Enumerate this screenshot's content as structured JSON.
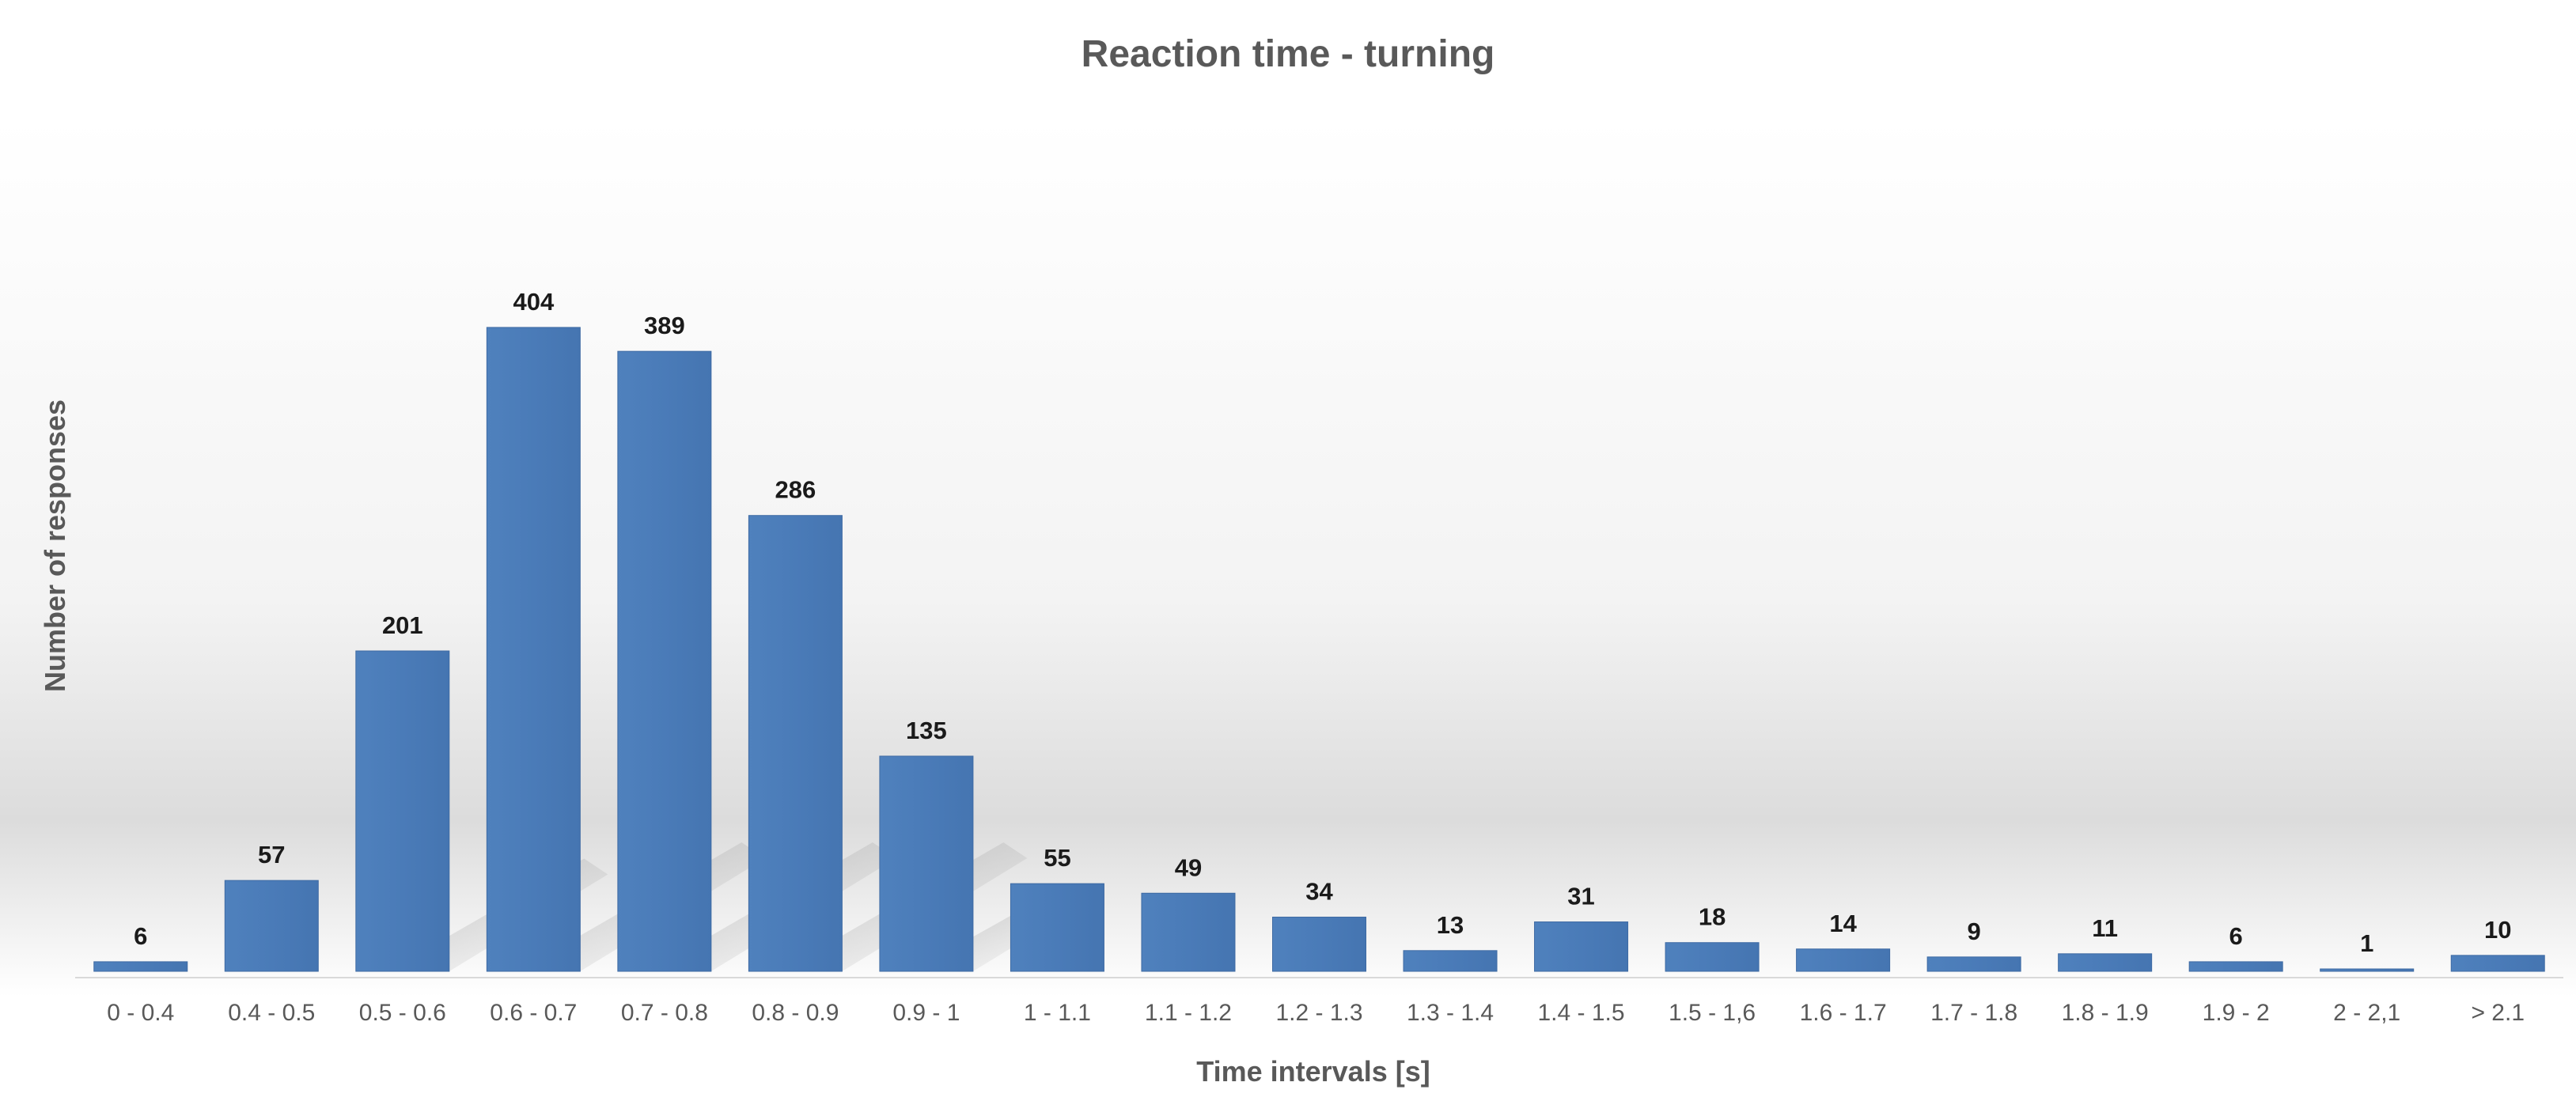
{
  "chart_data": {
    "type": "bar",
    "title": "Reaction time - turning",
    "xlabel": "Time intervals [s]",
    "ylabel": "Number of responses",
    "categories": [
      "0 - 0.4",
      "0.4 - 0.5",
      "0.5 - 0.6",
      "0.6 - 0.7",
      "0.7 - 0.8",
      "0.8 - 0.9",
      "0.9 - 1",
      "1 - 1.1",
      "1.1 - 1.2",
      "1.2 - 1.3",
      "1.3 - 1.4",
      "1.4 - 1.5",
      "1.5 - 1,6",
      "1.6 - 1.7",
      "1.7 - 1.8",
      "1.8 - 1.9",
      "1.9 - 2",
      "2 - 2,1",
      "> 2.1"
    ],
    "values": [
      6,
      57,
      201,
      404,
      389,
      286,
      135,
      55,
      49,
      34,
      13,
      31,
      18,
      14,
      9,
      11,
      6,
      1,
      10
    ],
    "data_labels": [
      "6",
      "57",
      "201",
      "404",
      "389",
      "286",
      "135",
      "55",
      "49",
      "34",
      "13",
      "31",
      "18",
      "14",
      "9",
      "11",
      "6",
      "1",
      "10"
    ],
    "ylim": [
      0,
      410
    ],
    "grid": false,
    "legend": "none",
    "colors": {
      "bar": "#4f81bd",
      "bar_dark": "#3e6aa3",
      "text": "#595959",
      "label": "#1a1a1a",
      "axis_line": "#d9d9d9"
    }
  }
}
